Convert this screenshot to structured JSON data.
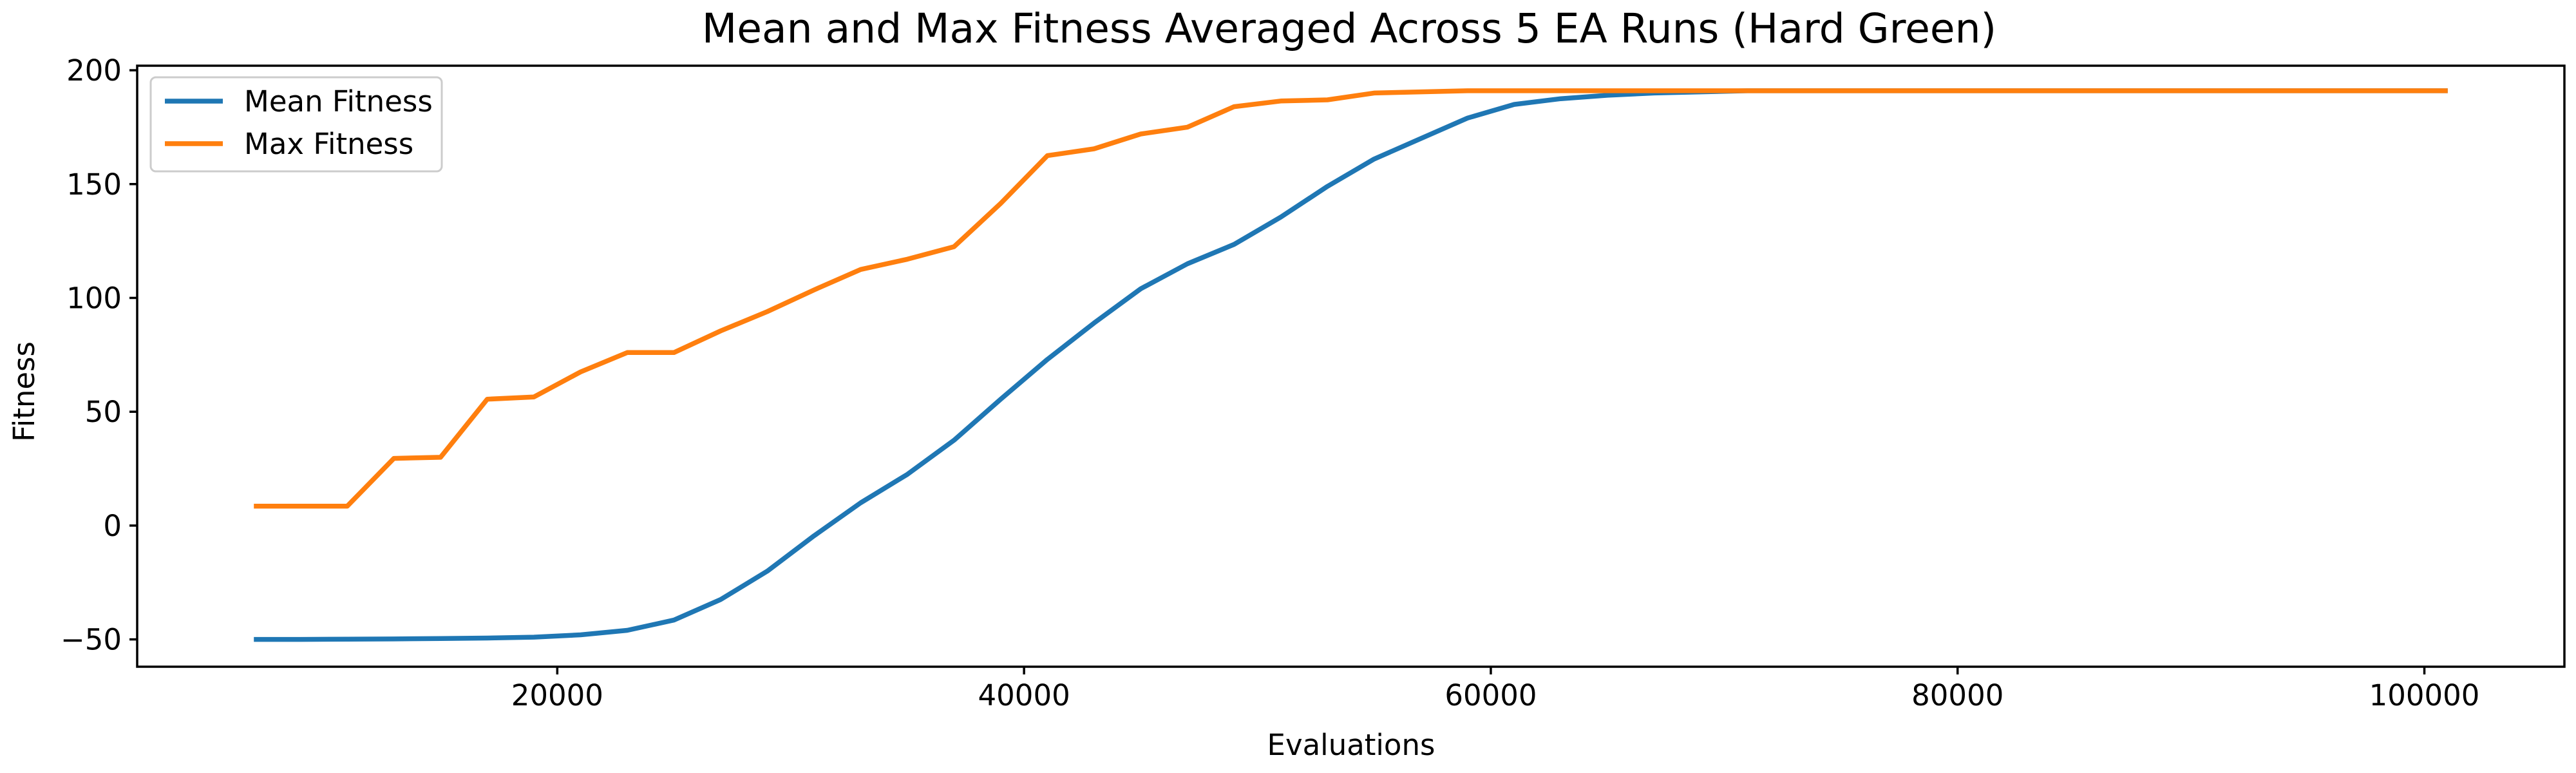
{
  "chart_data": {
    "type": "line",
    "title": "Mean and Max Fitness Averaged Across 5 EA Runs (Hard Green)",
    "xlabel": "Evaluations",
    "ylabel": "Fitness",
    "xlim": [
      2000,
      106000
    ],
    "ylim": [
      -62,
      202
    ],
    "xticks": [
      20000,
      40000,
      60000,
      80000,
      100000
    ],
    "yticks": [
      -50,
      0,
      50,
      100,
      150,
      200
    ],
    "grid": false,
    "legend_position": "upper left",
    "series": [
      {
        "name": "Mean Fitness",
        "color": "#1f77b4",
        "x": [
          7000,
          9000,
          11000,
          13000,
          15000,
          17000,
          19000,
          21000,
          23000,
          25000,
          27000,
          29000,
          31000,
          33000,
          35000,
          37000,
          39000,
          41000,
          43000,
          45000,
          47000,
          49000,
          51000,
          53000,
          55000,
          57000,
          59000,
          61000,
          63000,
          65000,
          67000,
          69000,
          71000,
          101000
        ],
        "y": [
          -50,
          -50,
          -49.9,
          -49.8,
          -49.6,
          -49.4,
          -49,
          -48,
          -46,
          -41.5,
          -32.5,
          -20,
          -4.5,
          10,
          22.5,
          37.5,
          55.5,
          73,
          89,
          104,
          115,
          123.5,
          135.5,
          149,
          161,
          170,
          179,
          185,
          187.5,
          189,
          190,
          190.5,
          191,
          191
        ]
      },
      {
        "name": "Max Fitness",
        "color": "#ff7f0e",
        "x": [
          7000,
          9000,
          11000,
          13000,
          15000,
          17000,
          19000,
          21000,
          23000,
          25000,
          27000,
          29000,
          31000,
          33000,
          35000,
          37000,
          39000,
          41000,
          43000,
          45000,
          47000,
          49000,
          51000,
          53000,
          55000,
          57000,
          59000,
          101000
        ],
        "y": [
          8.5,
          8.5,
          8.5,
          29.5,
          30,
          55.5,
          56.5,
          67.5,
          76,
          76,
          85.5,
          94,
          103.5,
          112.5,
          117,
          122.5,
          141.5,
          162.5,
          165.5,
          172,
          175,
          184,
          186.5,
          187,
          190,
          190.5,
          191,
          191
        ]
      }
    ]
  }
}
